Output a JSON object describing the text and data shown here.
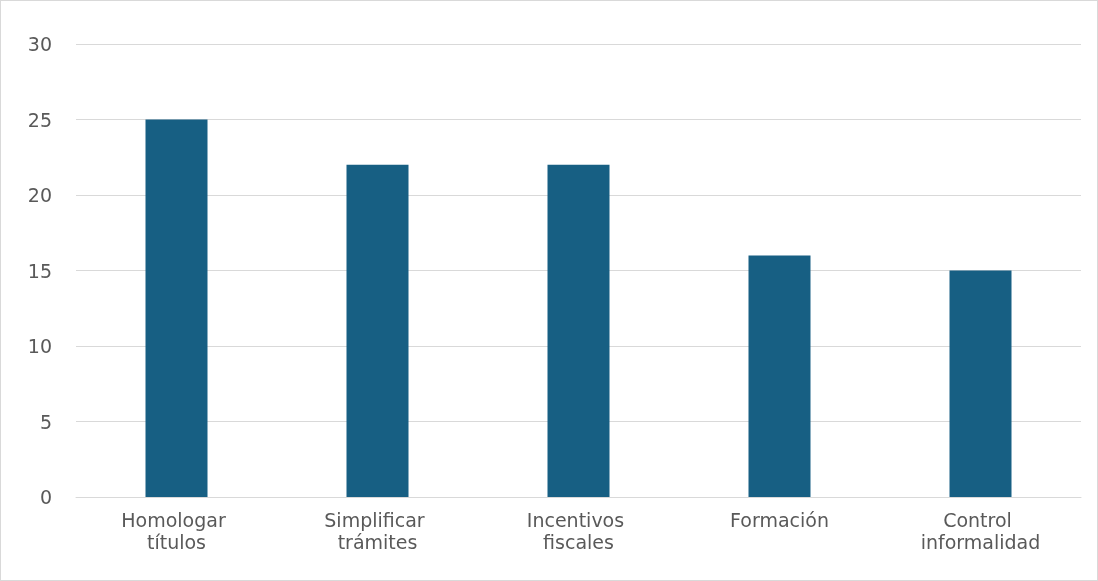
{
  "chart_data": {
    "type": "bar",
    "categories": [
      "Homologar títulos",
      "Simplificar trámites",
      "Incentivos fiscales",
      "Formación",
      "Control informalidad"
    ],
    "values": [
      25,
      22,
      22,
      16,
      15
    ],
    "color": "#175f83",
    "ylim": [
      0,
      30
    ],
    "yticks": [
      0,
      5,
      10,
      15,
      20,
      25,
      30
    ],
    "grid": "y"
  }
}
